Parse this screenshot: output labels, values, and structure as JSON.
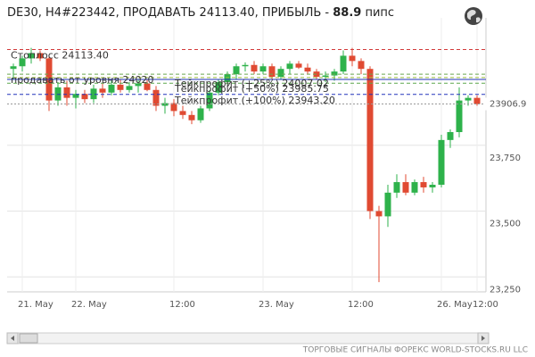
{
  "chart_data": {
    "type": "candlestick",
    "title_parts": [
      "DE30, H4#223442, ПРОДАВАТЬ 24113.40, ПРИБЫЛЬ - ",
      "88.9",
      " пипс"
    ],
    "footer": "ТОРГОВЫЕ СИГНАЛЫ ФОРЕКС WORLD-STOCKS.RU LLC",
    "categories": [
      null,
      "21. May",
      null,
      null,
      null,
      null,
      null,
      "22. May",
      null,
      null,
      null,
      null,
      null,
      null,
      null,
      null,
      null,
      null,
      "12:00",
      null,
      null,
      null,
      null,
      null,
      null,
      null,
      null,
      null,
      "23. May",
      null,
      null,
      null,
      null,
      null,
      null,
      null,
      null,
      null,
      "12:00",
      null,
      null,
      null,
      null,
      null,
      null,
      null,
      null,
      null,
      "26. May",
      null,
      null,
      null,
      "12:00"
    ],
    "open": [
      24040,
      24050,
      24080,
      24100,
      24080,
      23920,
      23970,
      23930,
      23945,
      23925,
      23965,
      23950,
      23980,
      23960,
      23975,
      23985,
      23960,
      23900,
      23910,
      23880,
      23865,
      23845,
      23890,
      23950,
      23990,
      24020,
      24050,
      24055,
      24030,
      24050,
      24010,
      24040,
      24060,
      24045,
      24030,
      24010,
      24015,
      24030,
      24090,
      24070,
      24040,
      23500,
      23480,
      23570,
      23610,
      23570,
      23610,
      23590,
      23600,
      23770,
      23800,
      23920,
      23930
    ],
    "high": [
      24060,
      24090,
      24120,
      24110,
      24090,
      23990,
      23995,
      23960,
      23960,
      23980,
      23985,
      23995,
      24000,
      23990,
      24000,
      24000,
      23975,
      23930,
      23925,
      23900,
      23880,
      23900,
      23960,
      24000,
      24030,
      24060,
      24065,
      24070,
      24060,
      24060,
      24050,
      24070,
      24070,
      24060,
      24040,
      24030,
      24040,
      24110,
      24120,
      24080,
      24050,
      23520,
      23600,
      23640,
      23640,
      23620,
      23630,
      23610,
      23790,
      23810,
      23970,
      23940,
      23940
    ],
    "low": [
      24000,
      24030,
      24060,
      24070,
      23880,
      23900,
      23900,
      23890,
      23910,
      23910,
      23930,
      23940,
      23950,
      23950,
      23950,
      23955,
      23880,
      23870,
      23860,
      23850,
      23830,
      23835,
      23880,
      23940,
      23980,
      24000,
      24030,
      24020,
      24020,
      24000,
      24000,
      24020,
      24040,
      24020,
      24000,
      23990,
      23995,
      24020,
      24050,
      24020,
      23470,
      23230,
      23440,
      23550,
      23560,
      23560,
      23570,
      23570,
      23590,
      23740,
      23780,
      23900,
      23900
    ],
    "close": [
      24050,
      24080,
      24100,
      24080,
      23920,
      23970,
      23930,
      23945,
      23925,
      23965,
      23950,
      23980,
      23960,
      23975,
      23985,
      23960,
      23900,
      23910,
      23880,
      23865,
      23845,
      23890,
      23950,
      23990,
      24020,
      24050,
      24055,
      24030,
      24050,
      24010,
      24040,
      24060,
      24045,
      24030,
      24010,
      24015,
      24030,
      24090,
      24070,
      24040,
      23500,
      23480,
      23570,
      23610,
      23570,
      23610,
      23590,
      23600,
      23770,
      23800,
      23920,
      23930,
      23906.9
    ],
    "up_color": "#2eb24b",
    "down_color": "#e04a32",
    "ylim": [
      23200,
      24200
    ],
    "yticks": [
      {
        "value": 23250,
        "label": "23,250"
      },
      {
        "value": 23500,
        "label": "23,500"
      },
      {
        "value": 23750,
        "label": "23,750"
      }
    ],
    "grid": true,
    "last_price": {
      "value": 23906.9,
      "label": "23906.9"
    },
    "levels": [
      {
        "label": "Стоплосс 24113.40",
        "value": 24113.4,
        "color": "#d23a3a",
        "dash": true,
        "label_x": "left"
      },
      {
        "value": 24000,
        "color": "#2233bb",
        "dash": false
      },
      {
        "label": "продавать от уровня 24020",
        "value": 24020,
        "color": "#6aa84f",
        "dash": true,
        "label_x": "left"
      },
      {
        "label": "Тейкпрофит (+25%) 24007.02",
        "value": 24007.02,
        "color": "#9fbf3f",
        "dash": true,
        "label_x": "mid"
      },
      {
        "label": "Тейкпрофит (+50%) 23985.75",
        "value": 23985.75,
        "color": "#5fa84f",
        "dash": true,
        "label_x": "mid"
      },
      {
        "label": "Тейкпрофит (+100%) 23943.20",
        "value": 23943.2,
        "color": "#2233bb",
        "dash": true,
        "label_x": "mid"
      }
    ]
  }
}
